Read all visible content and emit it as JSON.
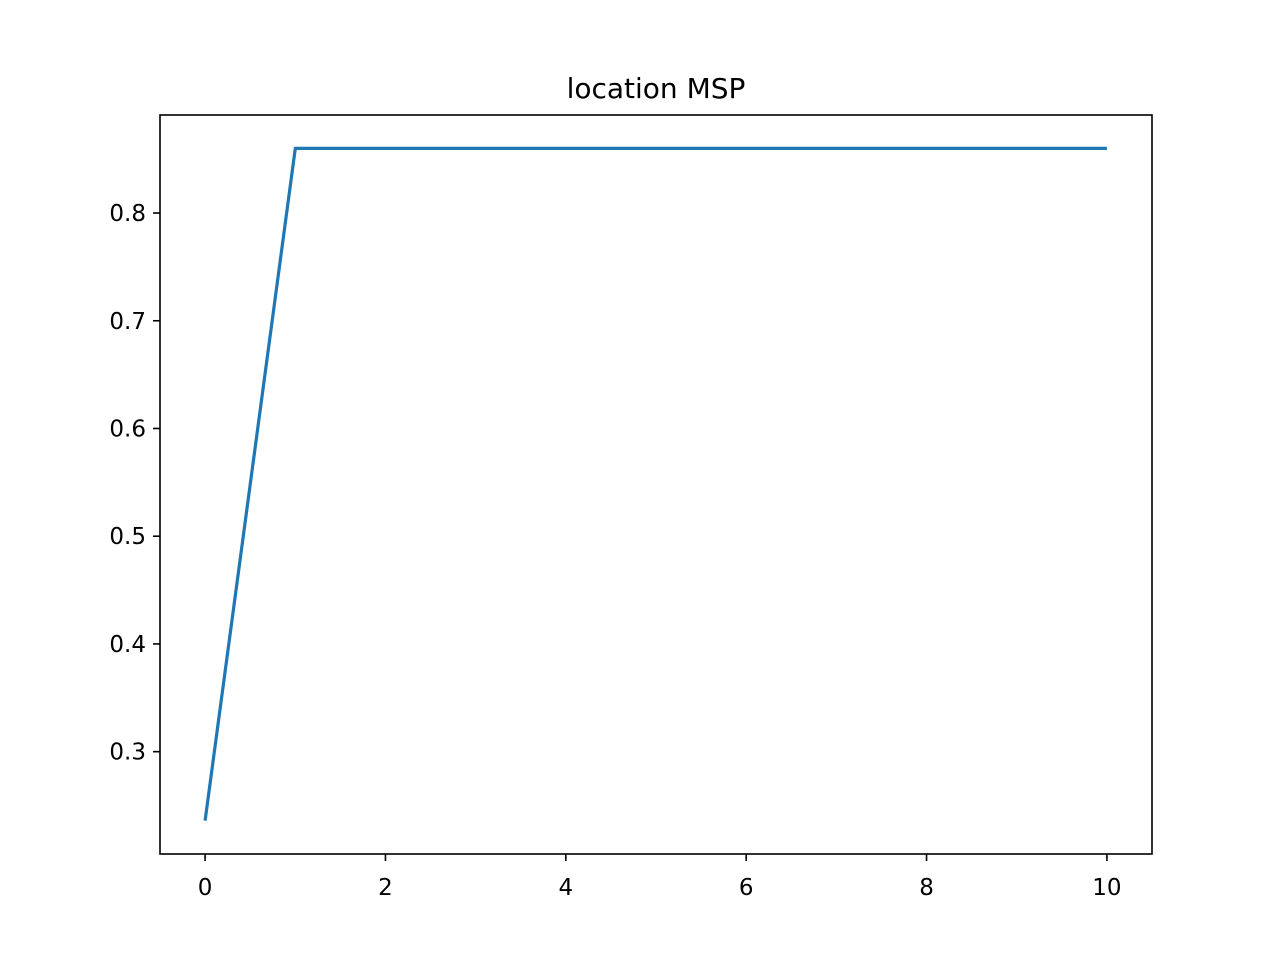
{
  "chart_data": {
    "type": "line",
    "title": "location MSP",
    "xlabel": "",
    "ylabel": "",
    "x": [
      0,
      1,
      2,
      3,
      4,
      5,
      6,
      7,
      8,
      9,
      10
    ],
    "series": [
      {
        "values": [
          0.236,
          0.86,
          0.86,
          0.86,
          0.86,
          0.86,
          0.86,
          0.86,
          0.86,
          0.86,
          0.86
        ],
        "color": "#1f77b4"
      }
    ],
    "xlim": [
      -0.5,
      10.5
    ],
    "ylim": [
      0.205,
      0.891
    ],
    "xticks": [
      0,
      2,
      4,
      6,
      8,
      10
    ],
    "xtick_labels": [
      "0",
      "2",
      "4",
      "6",
      "8",
      "10"
    ],
    "yticks": [
      0.3,
      0.4,
      0.5,
      0.6,
      0.7,
      0.8
    ],
    "ytick_labels": [
      "0.3",
      "0.4",
      "0.5",
      "0.6",
      "0.7",
      "0.8"
    ],
    "grid": false,
    "legend": "none"
  }
}
